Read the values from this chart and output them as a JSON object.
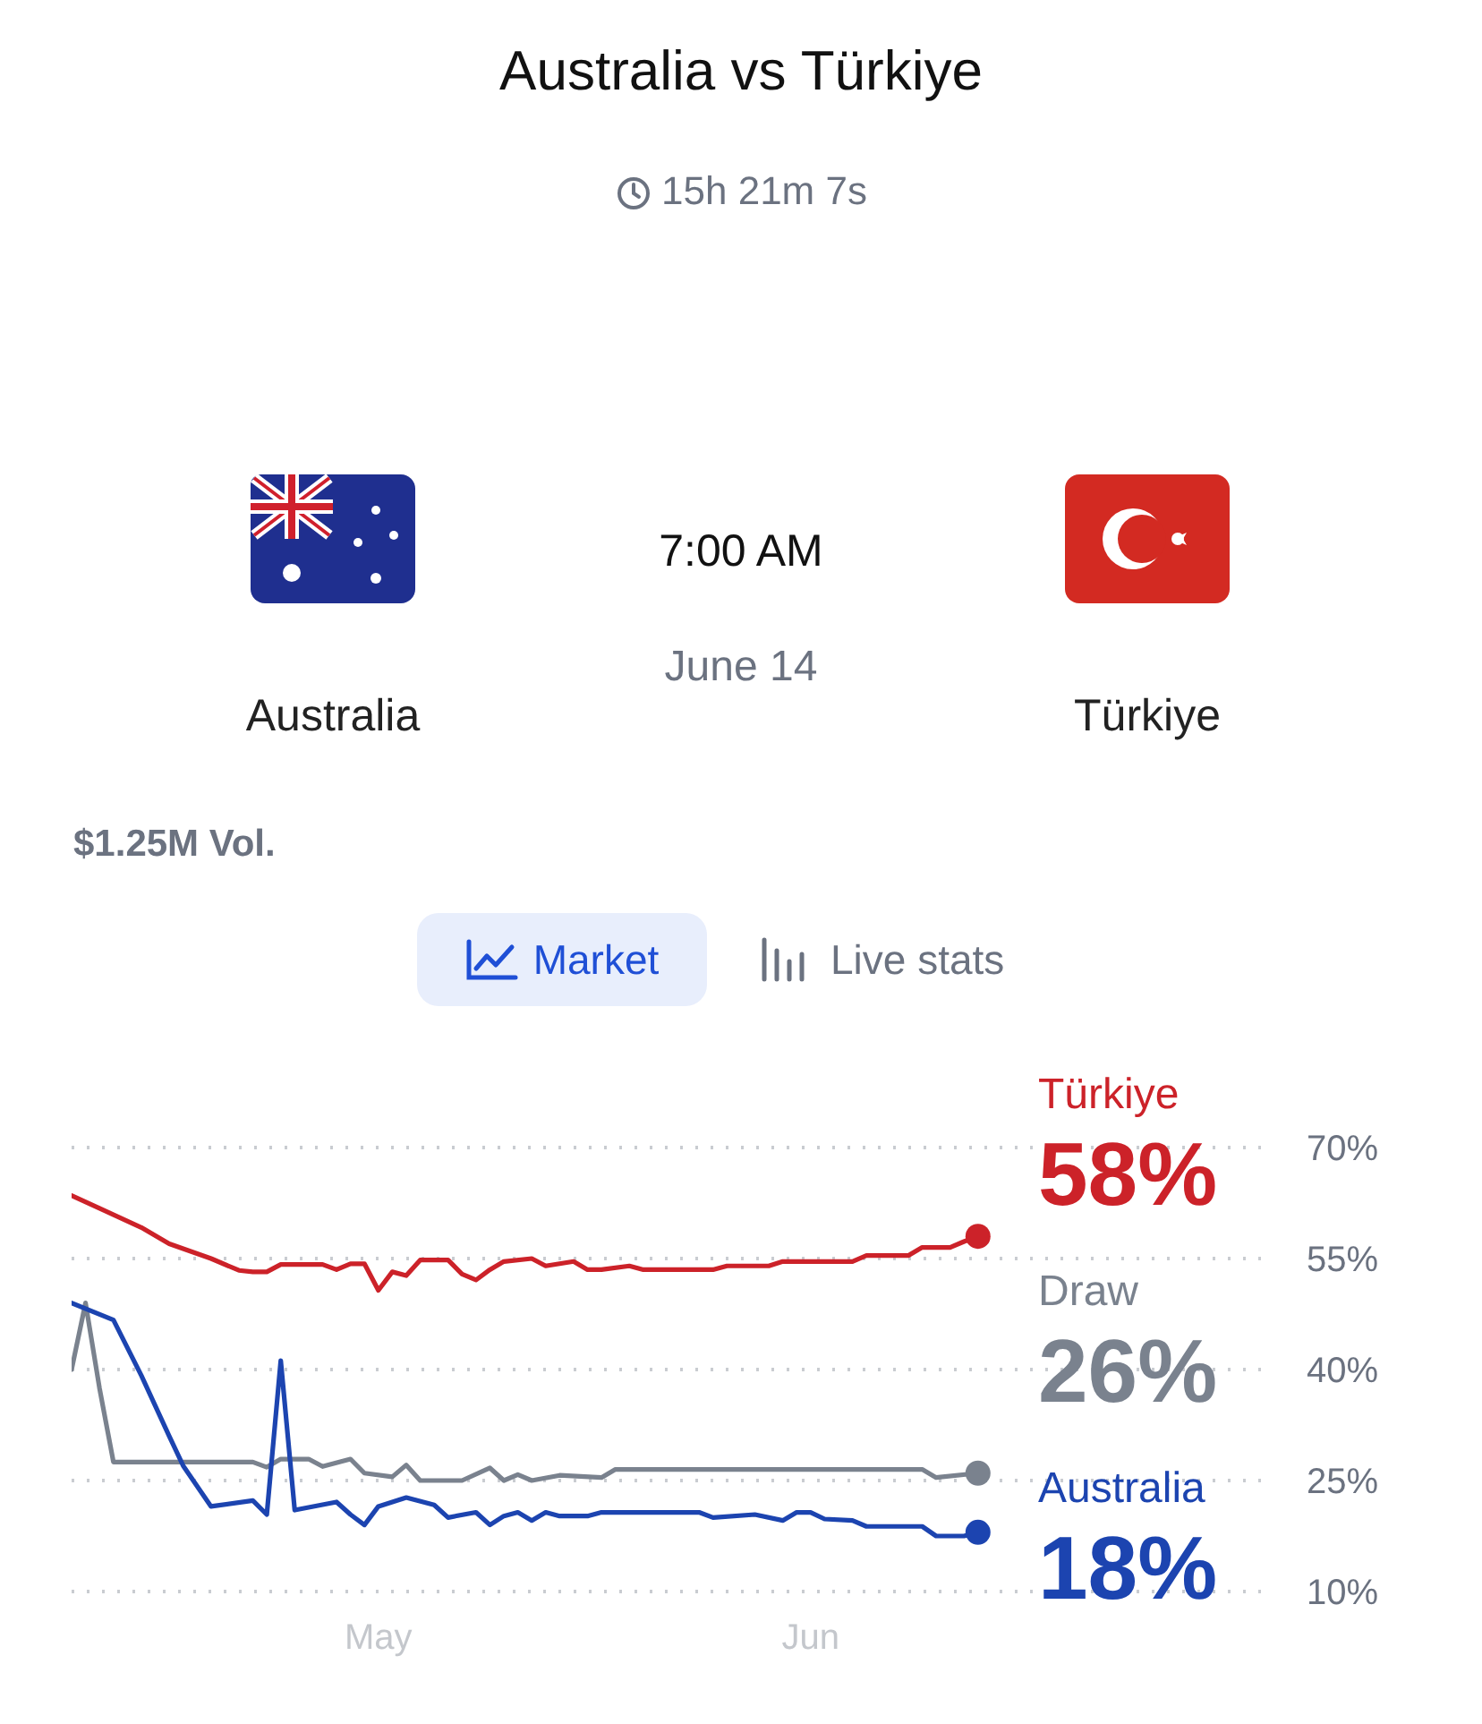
{
  "chart_data": {
    "type": "line",
    "title": "Australia vs Türkiye",
    "subtitle": "15h 21m 7s",
    "annotations": [
      "7:00 AM",
      "June 14",
      "Australia",
      "Türkiye",
      "$1.25M Vol.",
      "Market",
      "Live stats"
    ],
    "xlim": [
      "--04-09",
      "--07-04"
    ],
    "xticks": [
      {
        "value": "--05-01",
        "label": "May"
      },
      {
        "value": "--06-01",
        "label": "Jun"
      }
    ],
    "ylim": [
      10,
      70
    ],
    "yticks": [
      {
        "value": 10,
        "label": "10%"
      },
      {
        "value": 25,
        "label": "25%"
      },
      {
        "value": 40,
        "label": "40%"
      },
      {
        "value": 55,
        "label": "55%"
      },
      {
        "value": 70,
        "label": "70%"
      }
    ],
    "grid": "y",
    "legend": false,
    "marker": "none",
    "line_style": "solid",
    "series": [
      {
        "name": "Türkiye",
        "color": "#cc2229",
        "x": [
          "--04-09",
          "--04-11",
          "--04-14",
          "--04-16",
          "--04-19",
          "--04-21",
          "--04-22",
          "--04-23",
          "--04-24",
          "--04-27",
          "--04-28",
          "--04-29",
          "--04-30",
          "--05-01",
          "--05-02",
          "--05-03",
          "--05-04",
          "--05-06",
          "--05-07",
          "--05-08",
          "--05-09",
          "--05-10",
          "--05-12",
          "--05-13",
          "--05-15",
          "--05-16",
          "--05-17",
          "--05-19",
          "--05-20",
          "--05-25",
          "--05-26",
          "--05-29",
          "--05-30",
          "--06-04",
          "--06-05",
          "--06-08",
          "--06-09",
          "--06-11",
          "--06-12",
          "--06-13"
        ],
        "values": [
          63.5,
          61.8,
          59.2,
          57,
          55,
          53.4,
          53.2,
          53.2,
          54.2,
          54.2,
          53.5,
          54.3,
          54.3,
          50.7,
          53.2,
          52.7,
          54.8,
          54.8,
          52.9,
          52.1,
          53.5,
          54.6,
          55,
          54,
          54.6,
          53.5,
          53.5,
          54,
          53.5,
          53.5,
          54,
          54,
          54.6,
          54.6,
          55.4,
          55.4,
          56.5,
          56.5,
          57.3,
          58
        ],
        "value_labels": [
          null,
          null,
          null,
          null,
          null,
          null,
          null,
          null,
          null,
          null,
          null,
          null,
          null,
          null,
          null,
          null,
          null,
          null,
          null,
          null,
          null,
          null,
          null,
          null,
          null,
          null,
          null,
          null,
          null,
          null,
          null,
          null,
          null,
          null,
          null,
          null,
          null,
          null,
          null,
          "58%"
        ]
      },
      {
        "name": "Draw",
        "color": "#7a828e",
        "x": [
          "--04-09",
          "--04-10",
          "--04-11",
          "--04-12",
          "--04-22",
          "--04-23",
          "--04-24",
          "--04-26",
          "--04-27",
          "--04-29",
          "--04-30",
          "--05-02",
          "--05-03",
          "--05-04",
          "--05-07",
          "--05-09",
          "--05-10",
          "--05-11",
          "--05-12",
          "--05-14",
          "--05-17",
          "--05-18",
          "--06-09",
          "--06-10",
          "--06-13"
        ],
        "values": [
          40,
          49,
          37.5,
          27.5,
          27.5,
          26.8,
          27.9,
          27.9,
          26.9,
          27.9,
          26,
          25.5,
          27.1,
          25,
          25,
          26.7,
          25,
          25.8,
          25,
          25.7,
          25.4,
          26.5,
          26.5,
          25.4,
          26
        ],
        "value_labels": [
          null,
          null,
          null,
          null,
          null,
          null,
          null,
          null,
          null,
          null,
          null,
          null,
          null,
          null,
          null,
          null,
          null,
          null,
          null,
          null,
          null,
          null,
          null,
          null,
          "26%"
        ]
      },
      {
        "name": "Australia",
        "color": "#1c44b0",
        "x": [
          "--04-09",
          "--04-12",
          "--04-14",
          "--04-16",
          "--04-17",
          "--04-19",
          "--04-22",
          "--04-23",
          "--04-24",
          "--04-25",
          "--04-28",
          "--04-29",
          "--04-30",
          "--05-01",
          "--05-03",
          "--05-05",
          "--05-06",
          "--05-08",
          "--05-09",
          "--05-10",
          "--05-11",
          "--05-12",
          "--05-13",
          "--05-14",
          "--05-16",
          "--05-17",
          "--05-24",
          "--05-25",
          "--05-28",
          "--05-30",
          "--05-31",
          "--06-01",
          "--06-02",
          "--06-04",
          "--06-05",
          "--06-09",
          "--06-10",
          "--06-12",
          "--06-13"
        ],
        "values": [
          49,
          46.7,
          39.2,
          31,
          27,
          21.5,
          22.3,
          20.4,
          41.2,
          21,
          22.1,
          20.4,
          19,
          21.5,
          22.7,
          21.7,
          20,
          20.7,
          19,
          20.2,
          20.7,
          19.6,
          20.7,
          20.2,
          20.2,
          20.7,
          20.7,
          20,
          20.4,
          19.6,
          20.7,
          20.7,
          19.8,
          19.6,
          18.8,
          18.8,
          17.5,
          17.5,
          18
        ],
        "value_labels": [
          null,
          null,
          null,
          null,
          null,
          null,
          null,
          null,
          null,
          null,
          null,
          null,
          null,
          null,
          null,
          null,
          null,
          null,
          null,
          null,
          null,
          null,
          null,
          null,
          null,
          null,
          null,
          null,
          null,
          null,
          null,
          null,
          null,
          null,
          null,
          null,
          null,
          null,
          "18%"
        ]
      }
    ]
  }
}
